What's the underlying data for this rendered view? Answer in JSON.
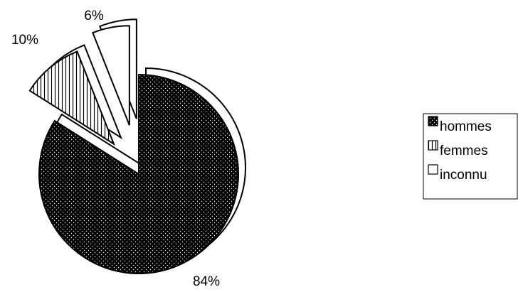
{
  "chart_data": {
    "type": "pie",
    "style": "3d-exploded",
    "categories": [
      "hommes",
      "femmes",
      "inconnu"
    ],
    "values": [
      84,
      10,
      6
    ],
    "value_labels": [
      "84%",
      "10%",
      "6%"
    ],
    "fills": [
      "dotted-dark",
      "vertical-hatch",
      "white"
    ],
    "colors": {
      "outline": "#000000",
      "background": "#ffffff",
      "dark_fill": "#000000"
    },
    "title": "",
    "legend": {
      "position": "right",
      "entries": [
        "hommes",
        "femmes",
        "inconnu"
      ]
    }
  }
}
